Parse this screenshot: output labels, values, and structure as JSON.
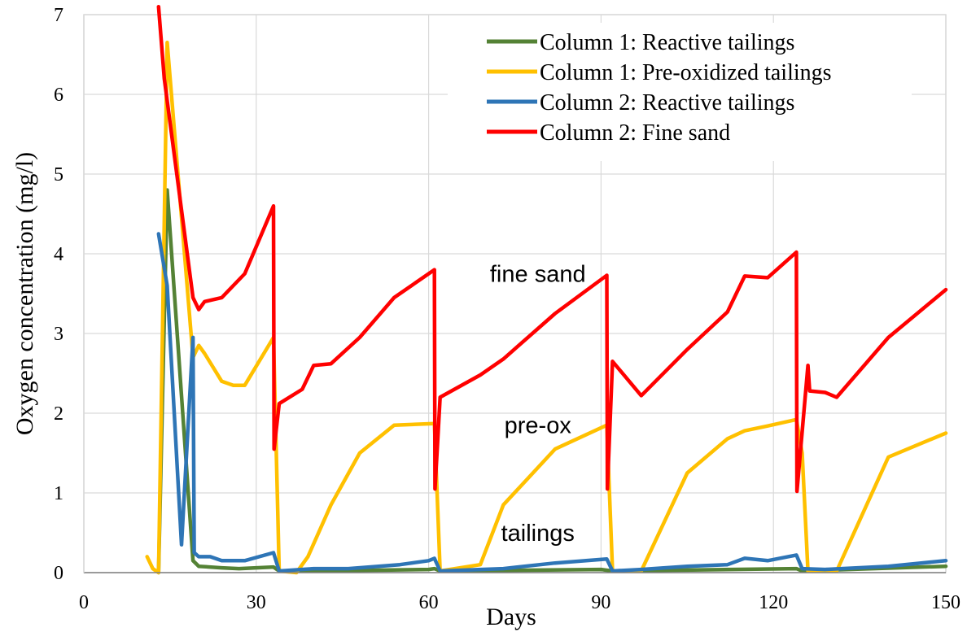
{
  "chart_data": {
    "type": "line",
    "title": "",
    "xlabel": "Days",
    "ylabel": "Oxygen  concentration  (mg/l)",
    "xlim": [
      0,
      150
    ],
    "ylim": [
      0,
      7
    ],
    "x_ticks": [
      0,
      30,
      60,
      90,
      120,
      150
    ],
    "y_ticks": [
      0,
      1,
      2,
      3,
      4,
      5,
      6,
      7
    ],
    "grid": "vertical and horizontal",
    "legend_position": "top-right",
    "annotations": [
      {
        "text": "fine sand",
        "x": 79,
        "y": 3.75
      },
      {
        "text": "pre-ox",
        "x": 79,
        "y": 1.85
      },
      {
        "text": "tailings",
        "x": 79,
        "y": 0.5
      }
    ],
    "series": [
      {
        "name": "Column 1: Reactive tailings",
        "color": "#548235",
        "x": [
          13,
          14.5,
          19,
          20,
          24,
          27,
          33,
          34,
          40,
          60,
          61,
          62,
          90,
          92,
          124,
          125,
          150
        ],
        "y": [
          0,
          4.8,
          0.15,
          0.08,
          0.06,
          0.05,
          0.07,
          0.02,
          0.02,
          0.04,
          0.05,
          0.02,
          0.04,
          0.02,
          0.05,
          0.02,
          0.08
        ]
      },
      {
        "name": "Column 1: Pre-oxidized tailings",
        "color": "#FFC000",
        "x": [
          11,
          12,
          13,
          14.5,
          19,
          20,
          21,
          24,
          26,
          28,
          33,
          34,
          37,
          39,
          43,
          48,
          54,
          61,
          62,
          69,
          73,
          82,
          91,
          92,
          97,
          105,
          112,
          115,
          119,
          124,
          125,
          126,
          131,
          140,
          150
        ],
        "y": [
          0.2,
          0.05,
          0,
          6.65,
          2.7,
          2.85,
          2.75,
          2.4,
          2.35,
          2.35,
          2.95,
          0.02,
          0,
          0.2,
          0.85,
          1.5,
          1.85,
          1.87,
          0.02,
          0.1,
          0.85,
          1.55,
          1.85,
          0.02,
          0.02,
          1.25,
          1.68,
          1.78,
          1.84,
          1.92,
          1.5,
          0.02,
          0.02,
          1.45,
          1.75
        ]
      },
      {
        "name": "Column 2: Reactive tailings",
        "color": "#2E75B6",
        "x": [
          13,
          14.5,
          17,
          19,
          19.2,
          20,
          22,
          24,
          28,
          33,
          34,
          40,
          46,
          55,
          60,
          61,
          62,
          73,
          82,
          91,
          92,
          97,
          105,
          112,
          115,
          119,
          124,
          125,
          129,
          140,
          150
        ],
        "y": [
          4.25,
          3.6,
          0.35,
          2.95,
          0.25,
          0.2,
          0.2,
          0.15,
          0.15,
          0.25,
          0.02,
          0.05,
          0.05,
          0.1,
          0.15,
          0.18,
          0.02,
          0.05,
          0.12,
          0.17,
          0.02,
          0.04,
          0.08,
          0.1,
          0.18,
          0.15,
          0.22,
          0.05,
          0.04,
          0.08,
          0.15
        ]
      },
      {
        "name": "Column 2: Fine sand",
        "color": "#FF0000",
        "x": [
          13,
          14,
          19,
          20,
          21,
          24,
          28,
          33,
          33.1,
          34,
          38,
          40,
          43,
          48,
          54,
          61,
          61.1,
          62,
          69,
          73,
          82,
          91,
          91.1,
          92,
          97,
          105,
          112,
          115,
          119,
          124,
          124.1,
          126,
          126.3,
          129,
          131,
          140,
          150
        ],
        "y": [
          7.1,
          6.2,
          3.45,
          3.3,
          3.4,
          3.45,
          3.75,
          4.6,
          1.55,
          2.12,
          2.3,
          2.6,
          2.62,
          2.95,
          3.45,
          3.8,
          1.05,
          2.2,
          2.48,
          2.68,
          3.25,
          3.73,
          1.05,
          2.65,
          2.22,
          2.8,
          3.27,
          3.72,
          3.7,
          4.02,
          1.02,
          2.6,
          2.28,
          2.26,
          2.2,
          2.95,
          3.55
        ]
      }
    ]
  }
}
